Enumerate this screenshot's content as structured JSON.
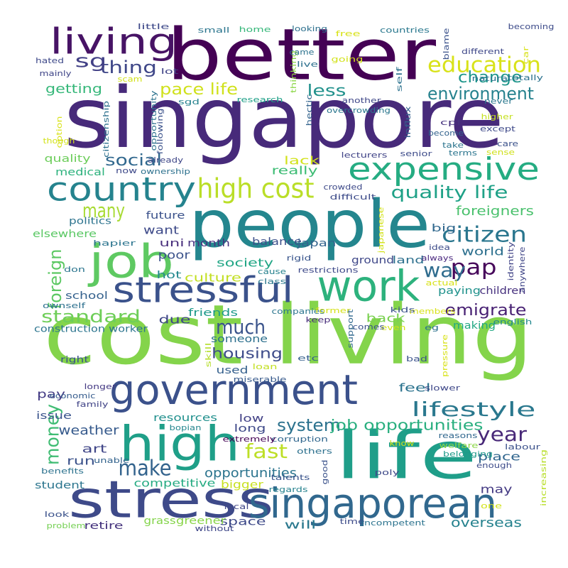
{
  "colors": {
    "background": "#ffffff",
    "purple_dark": "#440154",
    "indigo": "#3b2a7f",
    "blue": "#31688e",
    "teal": "#21918c",
    "green_teal": "#35b779",
    "green": "#7ad151",
    "yellow": "#d7e219"
  },
  "words": [
    {
      "text": "singapore",
      "color": "#472a7a"
    },
    {
      "text": "better",
      "color": "#440154"
    },
    {
      "text": "cost living",
      "color": "#84d44b"
    },
    {
      "text": "people",
      "color": "#24868e"
    },
    {
      "text": "life",
      "color": "#1f9e89"
    },
    {
      "text": "government",
      "color": "#3b518b"
    },
    {
      "text": "stress",
      "color": "#3e4a89"
    },
    {
      "text": "singaporean",
      "color": "#31688e"
    },
    {
      "text": "high",
      "color": "#1f9f88"
    },
    {
      "text": "job",
      "color": "#5ec962"
    },
    {
      "text": "work",
      "color": "#2db27d"
    },
    {
      "text": "stressful",
      "color": "#3b528b"
    },
    {
      "text": "expensive",
      "color": "#25ac82"
    },
    {
      "text": "country",
      "color": "#25838e"
    },
    {
      "text": "living",
      "color": "#471365"
    },
    {
      "text": "high cost",
      "color": "#bade28"
    },
    {
      "text": "education",
      "color": "#d8e219"
    },
    {
      "text": "environment",
      "color": "#26828e"
    },
    {
      "text": "many",
      "color": "#a8db34"
    },
    {
      "text": "citizen",
      "color": "#2a768e"
    },
    {
      "text": "lifestyle",
      "color": "#2a788e"
    },
    {
      "text": "year",
      "color": "#482878"
    },
    {
      "text": "pap",
      "color": "#46075a"
    },
    {
      "text": "emigrate",
      "color": "#482173"
    },
    {
      "text": "much",
      "color": "#3a538b"
    },
    {
      "text": "make",
      "color": "#33638d"
    },
    {
      "text": "fast",
      "color": "#bddf26"
    },
    {
      "text": "money",
      "color": "#3fbc73"
    },
    {
      "text": "foreign",
      "color": "#5cc863"
    },
    {
      "text": "standard",
      "color": "#6ece58"
    },
    {
      "text": "quality life",
      "color": "#1fa187"
    },
    {
      "text": "system",
      "color": "#2c728e"
    },
    {
      "text": "job opportunities",
      "color": "#29af7f"
    },
    {
      "text": "way",
      "color": "#2f6c8e"
    },
    {
      "text": "change",
      "color": "#1f968b"
    },
    {
      "text": "thing",
      "color": "#3f4788"
    },
    {
      "text": "sg",
      "color": "#424086"
    },
    {
      "text": "less",
      "color": "#21918c"
    },
    {
      "text": "social",
      "color": "#31688e"
    },
    {
      "text": "pace life",
      "color": "#d0e11c"
    },
    {
      "text": "getting",
      "color": "#35b779"
    },
    {
      "text": "housing",
      "color": "#3e4c8a"
    },
    {
      "text": "overseas",
      "color": "#26828e"
    },
    {
      "text": "opportunities",
      "color": "#2b748e"
    },
    {
      "text": "weather",
      "color": "#375b8d"
    },
    {
      "text": "foreigners",
      "color": "#4ac16d"
    },
    {
      "text": "world",
      "color": "#2d708e"
    },
    {
      "text": "culture",
      "color": "#c2df23"
    },
    {
      "text": "society",
      "color": "#21a685"
    },
    {
      "text": "standard of",
      "color": "#21918c"
    },
    {
      "text": "lack",
      "color": "#d2e21b"
    },
    {
      "text": "really",
      "color": "#3dbc74"
    },
    {
      "text": "feel",
      "color": "#2c738e"
    },
    {
      "text": "may",
      "color": "#443a83"
    },
    {
      "text": "paying",
      "color": "#20928c"
    },
    {
      "text": "children",
      "color": "#46307e"
    },
    {
      "text": "making",
      "color": "#22a884"
    },
    {
      "text": "place",
      "color": "#31668e"
    },
    {
      "text": "art",
      "color": "#404688"
    },
    {
      "text": "run",
      "color": "#3b528b"
    },
    {
      "text": "competitive",
      "color": "#25ab82"
    },
    {
      "text": "bigger",
      "color": "#c8e020"
    },
    {
      "text": "will",
      "color": "#2a788e"
    },
    {
      "text": "space",
      "color": "#3e4a89"
    },
    {
      "text": "greener",
      "color": "#89d548"
    },
    {
      "text": "grass",
      "color": "#84d44b"
    },
    {
      "text": "retire",
      "color": "#45337d"
    },
    {
      "text": "student",
      "color": "#2b758e"
    },
    {
      "text": "back",
      "color": "#7ad151"
    },
    {
      "text": "due",
      "color": "#3f4788"
    },
    {
      "text": "someone",
      "color": "#2d708e"
    },
    {
      "text": "used",
      "color": "#35608d"
    },
    {
      "text": "pay",
      "color": "#443b84"
    },
    {
      "text": "low",
      "color": "#424186"
    },
    {
      "text": "long",
      "color": "#3e4989"
    },
    {
      "text": "resources",
      "color": "#21908d"
    },
    {
      "text": "issue",
      "color": "#3a548c"
    },
    {
      "text": "month",
      "color": "#46327e"
    },
    {
      "text": "balance",
      "color": "#3c4f8a"
    },
    {
      "text": "japan",
      "color": "#33638d"
    },
    {
      "text": "want",
      "color": "#3e4a89"
    },
    {
      "text": "uni",
      "color": "#472d7b"
    },
    {
      "text": "poor",
      "color": "#3b528b"
    },
    {
      "text": "hot",
      "color": "#23888e"
    },
    {
      "text": "future",
      "color": "#3b528b"
    },
    {
      "text": "big",
      "color": "#31688e"
    },
    {
      "text": "land",
      "color": "#2d708e"
    },
    {
      "text": "ground",
      "color": "#3f4889"
    },
    {
      "text": "elsewhere",
      "color": "#5ac864"
    },
    {
      "text": "politics",
      "color": "#2c738e"
    },
    {
      "text": "medical",
      "color": "#2db27d"
    },
    {
      "text": "quality",
      "color": "#6ccd5a"
    },
    {
      "text": "school",
      "color": "#34618d"
    },
    {
      "text": "friends",
      "color": "#1f9a8a"
    },
    {
      "text": "construction worker",
      "color": "#2b748e"
    },
    {
      "text": "right",
      "color": "#3b528b"
    },
    {
      "text": "economic",
      "color": "#365c8d"
    },
    {
      "text": "family",
      "color": "#414487"
    },
    {
      "text": "longer",
      "color": "#443983"
    },
    {
      "text": "benefits",
      "color": "#2c728e"
    },
    {
      "text": "unable",
      "color": "#33638d"
    },
    {
      "text": "look",
      "color": "#3b528b"
    },
    {
      "text": "problem",
      "color": "#75d054"
    },
    {
      "text": "local",
      "color": "#404688"
    },
    {
      "text": "without",
      "color": "#3f4788"
    },
    {
      "text": "time",
      "color": "#3e4c8a"
    },
    {
      "text": "incompetent",
      "color": "#2c738e"
    },
    {
      "text": "regards",
      "color": "#26828e"
    },
    {
      "text": "talents",
      "color": "#3a548c"
    },
    {
      "text": "good",
      "color": "#3b528b"
    },
    {
      "text": "poly",
      "color": "#3e4989"
    },
    {
      "text": "others",
      "color": "#2d718e"
    },
    {
      "text": "corruption",
      "color": "#31678e"
    },
    {
      "text": "extremely",
      "color": "#440154"
    },
    {
      "text": "bopian",
      "color": "#24868e"
    },
    {
      "text": "miserable",
      "color": "#375a8c"
    },
    {
      "text": "loan",
      "color": "#c2df23"
    },
    {
      "text": "etc",
      "color": "#35608d"
    },
    {
      "text": "skill",
      "color": "#b5de2b"
    },
    {
      "text": "bad",
      "color": "#3b528b"
    },
    {
      "text": "slower",
      "color": "#3f4889"
    },
    {
      "text": "pressure",
      "color": "#d8e219"
    },
    {
      "text": "reasons",
      "color": "#31688e"
    },
    {
      "text": "welfare",
      "color": "#8bd646"
    },
    {
      "text": "know",
      "color": "#cde11d"
    },
    {
      "text": "belonging",
      "color": "#1f9a8a"
    },
    {
      "text": "enough",
      "color": "#3e4c8a"
    },
    {
      "text": "labour",
      "color": "#3b518b"
    },
    {
      "text": "increasing",
      "color": "#b8de29"
    },
    {
      "text": "one",
      "color": "#d2e21b"
    },
    {
      "text": "english",
      "color": "#23898e"
    },
    {
      "text": "eg",
      "color": "#2c728e"
    },
    {
      "text": "even",
      "color": "#d2e21b"
    },
    {
      "text": "comes",
      "color": "#3b528b"
    },
    {
      "text": "members",
      "color": "#d8e219"
    },
    {
      "text": "kids",
      "color": "#3b528b"
    },
    {
      "text": "companies",
      "color": "#2b758e"
    },
    {
      "text": "former",
      "color": "#d5e21a"
    },
    {
      "text": "keep",
      "color": "#472c7a"
    },
    {
      "text": "support",
      "color": "#31688e"
    },
    {
      "text": "actual",
      "color": "#d8e219"
    },
    {
      "text": "identity",
      "color": "#414487"
    },
    {
      "text": "anywhere",
      "color": "#404688"
    },
    {
      "text": "idea",
      "color": "#3e4c8a"
    },
    {
      "text": "always",
      "color": "#4c2a80"
    },
    {
      "text": "japanese",
      "color": "#d2e21b"
    },
    {
      "text": "rigid",
      "color": "#39558c"
    },
    {
      "text": "restrictions",
      "color": "#3e4989"
    },
    {
      "text": "cause",
      "color": "#26828e"
    },
    {
      "text": "class",
      "color": "#2a788e"
    },
    {
      "text": "crowded",
      "color": "#3e4a89"
    },
    {
      "text": "difficult",
      "color": "#3e4c8a"
    },
    {
      "text": "ownself",
      "color": "#2d708e"
    },
    {
      "text": "don",
      "color": "#2b758e"
    },
    {
      "text": "hapier",
      "color": "#2b748e"
    },
    {
      "text": "happier",
      "color": "#2d708e"
    },
    {
      "text": "now",
      "color": "#3e4989"
    },
    {
      "text": "ownership",
      "color": "#2d718e"
    },
    {
      "text": "already",
      "color": "#3f4788"
    },
    {
      "text": "citizenship",
      "color": "#2d718e"
    },
    {
      "text": "option",
      "color": "#d8e219"
    },
    {
      "text": "though",
      "color": "#d2e21b"
    },
    {
      "text": "opportunity",
      "color": "#2c728e"
    },
    {
      "text": "following",
      "color": "#3b528b"
    },
    {
      "text": "sgd",
      "color": "#26828e"
    },
    {
      "text": "research",
      "color": "#1fa088"
    },
    {
      "text": "thinking",
      "color": "#8bd646"
    },
    {
      "text": "hectic",
      "color": "#33638d"
    },
    {
      "text": "overcrowding",
      "color": "#2a768e"
    },
    {
      "text": "another",
      "color": "#3f4788"
    },
    {
      "text": "influx",
      "color": "#34618d"
    },
    {
      "text": "self",
      "color": "#2c728e"
    },
    {
      "text": "natural",
      "color": "#2c728e"
    },
    {
      "text": "never",
      "color": "#2a788e"
    },
    {
      "text": "cpf",
      "color": "#46327e"
    },
    {
      "text": "become",
      "color": "#33638d"
    },
    {
      "text": "higher",
      "color": "#c5e021"
    },
    {
      "text": "except",
      "color": "#3e4989"
    },
    {
      "text": "care",
      "color": "#3b528b"
    },
    {
      "text": "sense",
      "color": "#d0e11c"
    },
    {
      "text": "terms",
      "color": "#2b758e"
    },
    {
      "text": "senior",
      "color": "#3e4c8a"
    },
    {
      "text": "lecturers",
      "color": "#414487"
    },
    {
      "text": "take",
      "color": "#2b748e"
    },
    {
      "text": "hated",
      "color": "#3e4989"
    },
    {
      "text": "mainly",
      "color": "#404688"
    },
    {
      "text": "scam",
      "color": "#d2e21b"
    },
    {
      "text": "lot",
      "color": "#414487"
    },
    {
      "text": "little",
      "color": "#3e4989"
    },
    {
      "text": "small",
      "color": "#2b758e"
    },
    {
      "text": "home",
      "color": "#35b779"
    },
    {
      "text": "looking",
      "color": "#2d708e"
    },
    {
      "text": "free",
      "color": "#d8e219"
    },
    {
      "text": "countries",
      "color": "#2a788e"
    },
    {
      "text": "blame",
      "color": "#3b528b"
    },
    {
      "text": "becoming",
      "color": "#3e4c8a"
    },
    {
      "text": "came",
      "color": "#2c728e"
    },
    {
      "text": "going",
      "color": "#d2e21b"
    },
    {
      "text": "different",
      "color": "#3f4889"
    },
    {
      "text": "live",
      "color": "#2d708e"
    },
    {
      "text": "car",
      "color": "#d8e219"
    },
    {
      "text": "totally",
      "color": "#2c728e"
    }
  ]
}
